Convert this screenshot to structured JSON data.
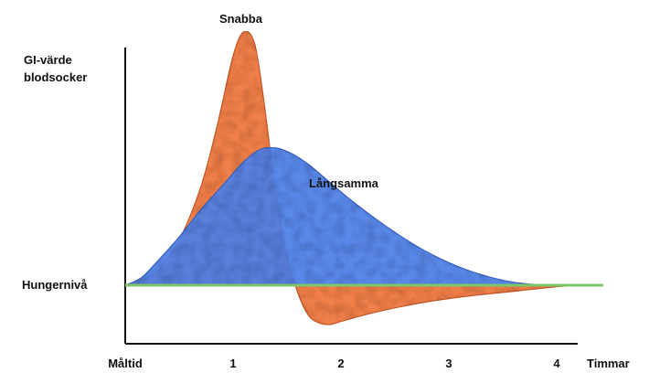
{
  "chart_data": {
    "type": "area",
    "ylabel_line1": "GI-värde",
    "ylabel_line2": "blodsocker",
    "xlabel": "Timmar",
    "x_ticks": [
      "Måltid",
      "1",
      "2",
      "3",
      "4"
    ],
    "x_tick_values": [
      0,
      1,
      2,
      3,
      4
    ],
    "xlim": [
      0,
      4.3
    ],
    "ylim": [
      -0.3,
      1.8
    ],
    "reference_line": {
      "label": "Hungernivå",
      "value": 0,
      "color": "#7dc66a"
    },
    "grid": false,
    "series": [
      {
        "name": "Snabba",
        "color": "#f07f4a",
        "x": [
          0,
          0.15,
          0.3,
          0.5,
          0.7,
          0.85,
          1.0,
          1.1,
          1.2,
          1.28,
          1.38,
          1.5,
          1.6,
          1.7,
          1.8,
          1.9,
          2.0,
          2.2,
          2.5,
          2.8,
          3.2,
          3.6,
          4.0,
          4.3
        ],
        "y": [
          0,
          0.03,
          0.1,
          0.3,
          0.65,
          1.05,
          1.52,
          1.68,
          1.6,
          1.25,
          0.7,
          0.2,
          -0.05,
          -0.2,
          -0.25,
          -0.26,
          -0.24,
          -0.2,
          -0.15,
          -0.11,
          -0.07,
          -0.04,
          -0.01,
          0
        ]
      },
      {
        "name": "Långsamma",
        "color": "#4d7fe6",
        "x": [
          0,
          0.15,
          0.3,
          0.5,
          0.7,
          0.9,
          1.1,
          1.25,
          1.4,
          1.55,
          1.7,
          1.9,
          2.1,
          2.4,
          2.7,
          3.0,
          3.3,
          3.6,
          3.9,
          4.1,
          4.3
        ],
        "y": [
          0,
          0.05,
          0.16,
          0.32,
          0.5,
          0.66,
          0.82,
          0.9,
          0.91,
          0.87,
          0.8,
          0.68,
          0.56,
          0.4,
          0.26,
          0.15,
          0.07,
          0.02,
          0,
          0,
          0
        ]
      }
    ]
  }
}
